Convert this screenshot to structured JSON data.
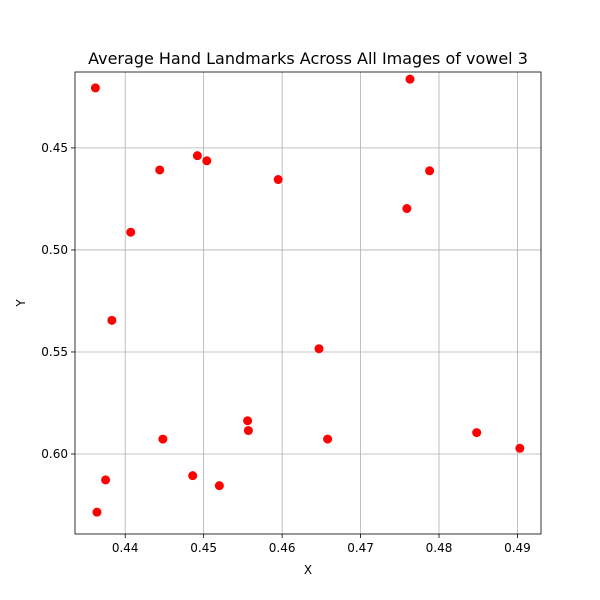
{
  "chart_data": {
    "type": "scatter",
    "title": "Average Hand Landmarks Across All Images of vowel 3",
    "xlabel": "X",
    "ylabel": "Y",
    "xlim": [
      0.4336,
      0.493
    ],
    "ylim": [
      0.6392,
      0.4128
    ],
    "y_inverted": true,
    "grid": true,
    "point_color": "#ff0000",
    "xticks": [
      0.44,
      0.45,
      0.46,
      0.47,
      0.48,
      0.49
    ],
    "xtick_labels": [
      "0.44",
      "0.45",
      "0.46",
      "0.47",
      "0.48",
      "0.49"
    ],
    "yticks": [
      0.45,
      0.5,
      0.55,
      0.6
    ],
    "ytick_labels": [
      "0.45",
      "0.50",
      "0.55",
      "0.60"
    ],
    "points": [
      {
        "x": 0.4362,
        "y": 0.4206
      },
      {
        "x": 0.4763,
        "y": 0.4163
      },
      {
        "x": 0.4492,
        "y": 0.4538
      },
      {
        "x": 0.4504,
        "y": 0.4563
      },
      {
        "x": 0.4444,
        "y": 0.4608
      },
      {
        "x": 0.4595,
        "y": 0.4655
      },
      {
        "x": 0.4788,
        "y": 0.4612
      },
      {
        "x": 0.4759,
        "y": 0.4797
      },
      {
        "x": 0.4407,
        "y": 0.4913
      },
      {
        "x": 0.4383,
        "y": 0.5345
      },
      {
        "x": 0.4647,
        "y": 0.5484
      },
      {
        "x": 0.4556,
        "y": 0.5837
      },
      {
        "x": 0.4557,
        "y": 0.5885
      },
      {
        "x": 0.4448,
        "y": 0.5927
      },
      {
        "x": 0.4658,
        "y": 0.5927
      },
      {
        "x": 0.4848,
        "y": 0.5895
      },
      {
        "x": 0.4903,
        "y": 0.5972
      },
      {
        "x": 0.4486,
        "y": 0.6106
      },
      {
        "x": 0.4375,
        "y": 0.6127
      },
      {
        "x": 0.452,
        "y": 0.6155
      },
      {
        "x": 0.4364,
        "y": 0.6285
      }
    ]
  }
}
